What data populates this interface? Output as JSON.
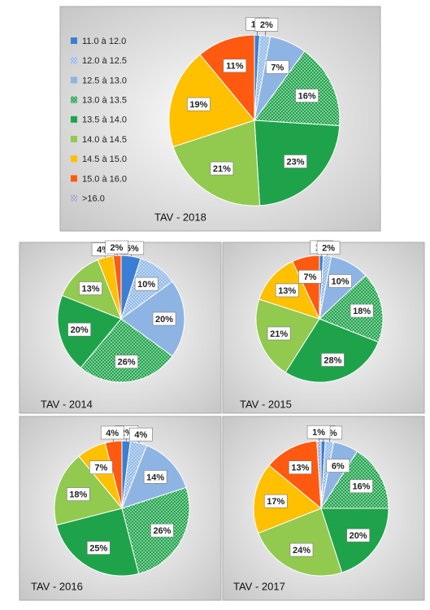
{
  "chart_data": [
    {
      "type": "pie",
      "title": "TAV - 2018",
      "legend": true,
      "categories": [
        "11.0 à 12.0",
        "12.0 à 12.5",
        "12.5 à 13.0",
        "13.0 à 13.5",
        "13.5 à 14.0",
        "14.0 à 14.5",
        "14.5 à 15.0",
        "15.0 à 16.0",
        ">16.0"
      ],
      "colors": [
        "#3b7fd4",
        "#8fb8e8",
        "#8eb4e3",
        "#1ea34a",
        "#1ea34a",
        "#92c94f",
        "#ffc000",
        "#ff5a0f",
        "#a6a6c8"
      ],
      "patterns": [
        "solid",
        "dots",
        "solid",
        "dots",
        "solid",
        "solid",
        "solid",
        "solid",
        "dots"
      ],
      "values": [
        1,
        2,
        7,
        16,
        23,
        21,
        19,
        11,
        null
      ],
      "value_labels": [
        "1%",
        "2%",
        "7%",
        "16%",
        "23%",
        "21%",
        "19%",
        "11%",
        null
      ]
    },
    {
      "type": "pie",
      "title": "TAV - 2014",
      "values": [
        5,
        10,
        20,
        26,
        20,
        13,
        4,
        2,
        null
      ],
      "value_labels": [
        "5%",
        "10%",
        "20%",
        "26%",
        "20%",
        "13%",
        "4%",
        "2%",
        null
      ]
    },
    {
      "type": "pie",
      "title": "TAV - 2015",
      "values": [
        1,
        2,
        10,
        18,
        28,
        21,
        13,
        7,
        null
      ],
      "value_labels": [
        "1%",
        "2%",
        "10%",
        "18%",
        "28%",
        "21%",
        "13%",
        "7%",
        null
      ]
    },
    {
      "type": "pie",
      "title": "TAV - 2016",
      "values": [
        2,
        4,
        14,
        26,
        25,
        18,
        7,
        4,
        null
      ],
      "value_labels": [
        "2%",
        "4%",
        "14%",
        "26%",
        "25%",
        "18%",
        "7%",
        "4%",
        null
      ]
    },
    {
      "type": "pie",
      "title": "TAV - 2017",
      "values": [
        1,
        2,
        6,
        16,
        20,
        24,
        17,
        13,
        1
      ],
      "value_labels": [
        "1%",
        "2%",
        "6%",
        "16%",
        "20%",
        "24%",
        "17%",
        "13%",
        "1%"
      ]
    }
  ]
}
